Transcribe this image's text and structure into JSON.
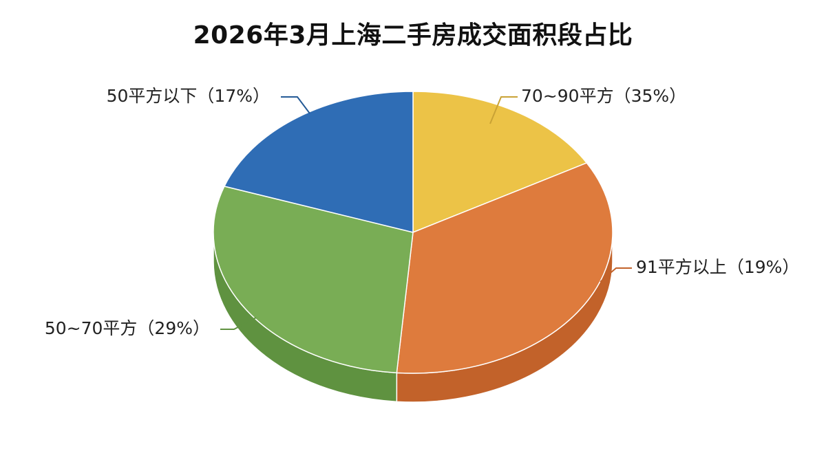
{
  "chart_data": {
    "type": "pie",
    "title": "2026年3月上海二手房成交面积段占比",
    "style": "3d",
    "slices": [
      {
        "label": "70~90平方",
        "percent_text": "（35%）",
        "value": 35,
        "color": "#ECC347",
        "side_color": "#C9A235"
      },
      {
        "label": "91平方以上",
        "percent_text": "（19%）",
        "value": 19,
        "color": "#DE7B3D",
        "side_color": "#C2622A"
      },
      {
        "label": "50~70平方",
        "percent_text": "（29%）",
        "value": 29,
        "color": "#79AD55",
        "side_color": "#5F9240"
      },
      {
        "label": "50平方以下",
        "percent_text": "（17%）",
        "value": 17,
        "color": "#2F6DB5",
        "side_color": "#245A96"
      }
    ]
  }
}
